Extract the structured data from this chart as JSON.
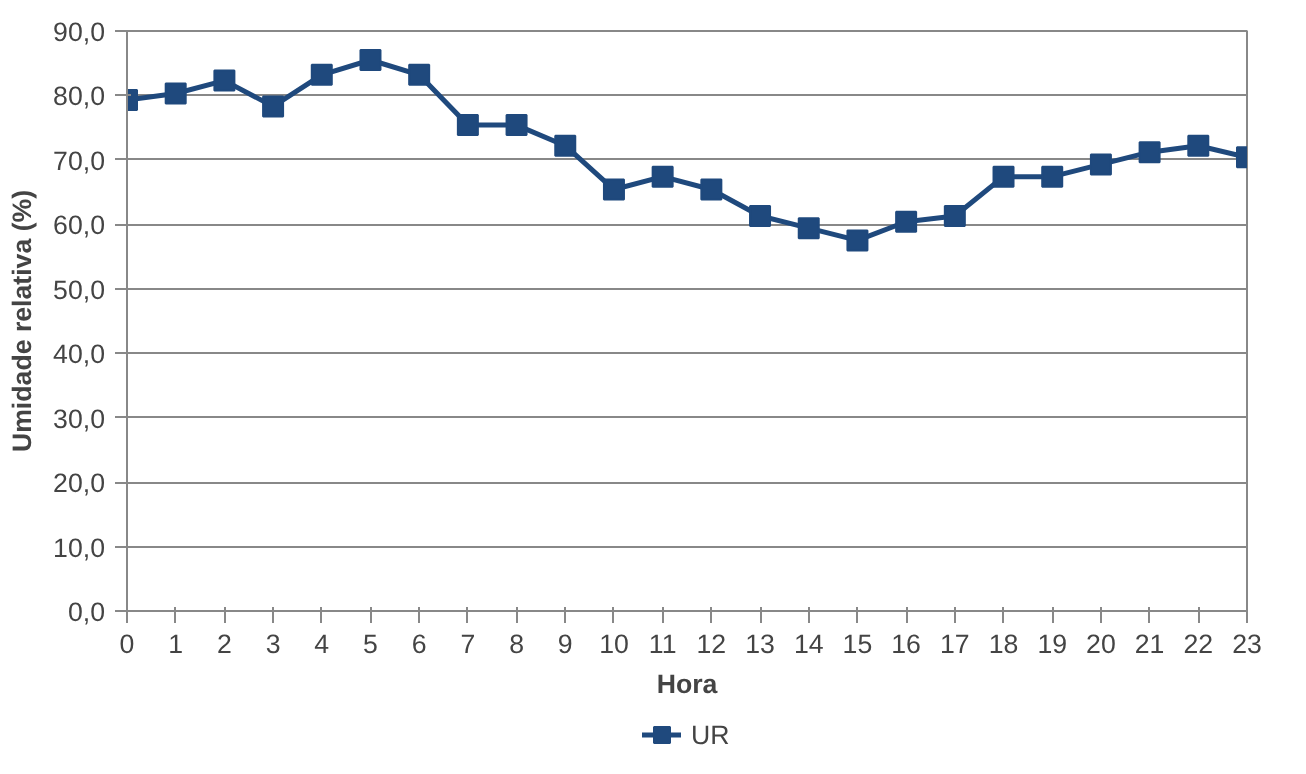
{
  "chart_data": {
    "type": "line",
    "xlabel": "Hora",
    "ylabel": "Umidade relativa (%)",
    "x": [
      0,
      1,
      2,
      3,
      4,
      5,
      6,
      7,
      8,
      9,
      10,
      11,
      12,
      13,
      14,
      15,
      16,
      17,
      18,
      19,
      20,
      21,
      22,
      23
    ],
    "series": [
      {
        "name": "UR",
        "color": "#1f497d",
        "values": [
          79.3,
          80.3,
          82.3,
          78.3,
          83.2,
          85.5,
          83.2,
          75.4,
          75.4,
          72.2,
          65.4,
          67.4,
          65.4,
          61.3,
          59.4,
          57.5,
          60.4,
          61.3,
          67.4,
          67.4,
          69.3,
          71.2,
          72.2,
          70.4
        ]
      }
    ],
    "xlim": [
      0,
      23
    ],
    "xticks": [
      0,
      1,
      2,
      3,
      4,
      5,
      6,
      7,
      8,
      9,
      10,
      11,
      12,
      13,
      14,
      15,
      16,
      17,
      18,
      19,
      20,
      21,
      22,
      23
    ],
    "ylim": [
      0,
      90
    ],
    "yticks": [
      {
        "value": 0,
        "label": "0,0"
      },
      {
        "value": 10,
        "label": "10,0"
      },
      {
        "value": 20,
        "label": "20,0"
      },
      {
        "value": 30,
        "label": "30,0"
      },
      {
        "value": 40,
        "label": "40,0"
      },
      {
        "value": 50,
        "label": "50,0"
      },
      {
        "value": 60,
        "label": "60,0"
      },
      {
        "value": 70,
        "label": "70,0"
      },
      {
        "value": 80,
        "label": "80,0"
      },
      {
        "value": 90,
        "label": "90,0"
      }
    ],
    "grid": "y",
    "legend": "bottom",
    "marker": "square",
    "line_style": "solid"
  }
}
